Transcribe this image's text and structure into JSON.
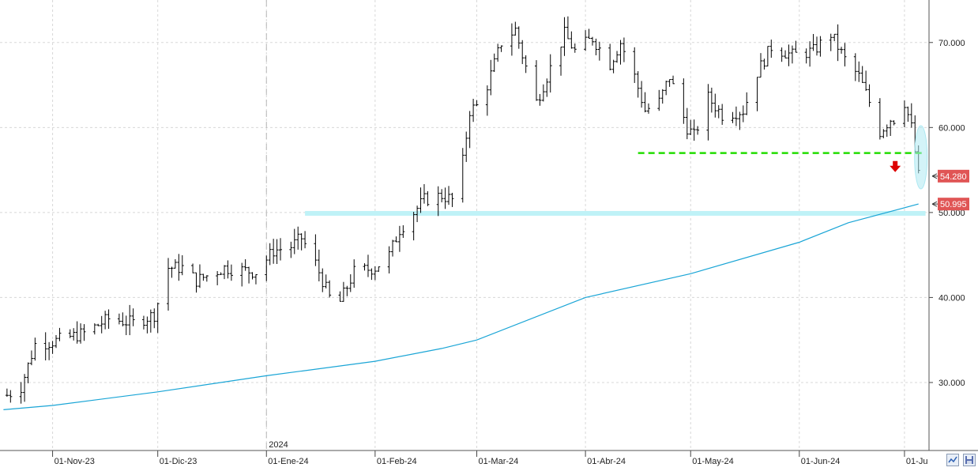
{
  "chart_data": {
    "type": "ohlc",
    "title": "",
    "xlabel": "",
    "ylabel": "",
    "ylim": [
      22,
      75
    ],
    "y_ticks": [
      {
        "value": 30,
        "label": "30.000"
      },
      {
        "value": 40,
        "label": "40.000"
      },
      {
        "value": 50,
        "label": "50.000"
      },
      {
        "value": 60,
        "label": "60.000"
      },
      {
        "value": 70,
        "label": "70.000"
      }
    ],
    "x_ticks": [
      {
        "date": "2023-11-01",
        "label": "01-Nov-23"
      },
      {
        "date": "2023-12-01",
        "label": "01-Dic-23"
      },
      {
        "date": "2024-01-01",
        "label": "01-Ene-24"
      },
      {
        "date": "2024-02-01",
        "label": "01-Feb-24"
      },
      {
        "date": "2024-03-01",
        "label": "01-Mar-24"
      },
      {
        "date": "2024-04-01",
        "label": "01-Abr-24"
      },
      {
        "date": "2024-05-01",
        "label": "01-May-24"
      },
      {
        "date": "2024-06-01",
        "label": "01-Jun-24"
      },
      {
        "date": "2024-07-01",
        "label": "01-Ju"
      }
    ],
    "year_marker": {
      "date": "2024-01-01",
      "label": "2024"
    },
    "last_price": {
      "value": 54.28,
      "label": "54.280",
      "color": "#e05555"
    },
    "ma_last": {
      "value": 50.995,
      "label": "50.995",
      "color": "#e05555"
    },
    "price_anchors": [
      [
        "2023-10-19",
        28.5
      ],
      [
        "2023-10-23",
        29.5
      ],
      [
        "2023-10-25",
        32.0
      ],
      [
        "2023-10-27",
        34.5
      ],
      [
        "2023-11-01",
        34.8
      ],
      [
        "2023-11-10",
        35.8
      ],
      [
        "2023-11-17",
        37.5
      ],
      [
        "2023-11-24",
        37.0
      ],
      [
        "2023-11-30",
        38.0
      ],
      [
        "2023-12-04",
        43.5
      ],
      [
        "2023-12-08",
        43.5
      ],
      [
        "2023-12-12",
        42.0
      ],
      [
        "2023-12-20",
        43.5
      ],
      [
        "2023-12-29",
        43.0
      ],
      [
        "2024-01-03",
        45.5
      ],
      [
        "2024-01-08",
        46.0
      ],
      [
        "2024-01-11",
        47.0
      ],
      [
        "2024-01-15",
        44.0
      ],
      [
        "2024-01-19",
        40.0
      ],
      [
        "2024-01-22",
        39.5
      ],
      [
        "2024-01-26",
        43.0
      ],
      [
        "2024-02-01",
        43.5
      ],
      [
        "2024-02-05",
        45.0
      ],
      [
        "2024-02-08",
        48.0
      ],
      [
        "2024-02-12",
        50.0
      ],
      [
        "2024-02-15",
        51.5
      ],
      [
        "2024-02-20",
        52.0
      ],
      [
        "2024-02-23",
        51.5
      ],
      [
        "2024-02-26",
        56.0
      ],
      [
        "2024-02-28",
        62.0
      ],
      [
        "2024-03-01",
        62.5
      ],
      [
        "2024-03-04",
        65.0
      ],
      [
        "2024-03-08",
        70.0
      ],
      [
        "2024-03-12",
        71.5
      ],
      [
        "2024-03-14",
        68.5
      ],
      [
        "2024-03-18",
        63.0
      ],
      [
        "2024-03-21",
        66.0
      ],
      [
        "2024-03-26",
        71.0
      ],
      [
        "2024-03-29",
        69.0
      ],
      [
        "2024-04-03",
        70.5
      ],
      [
        "2024-04-08",
        67.5
      ],
      [
        "2024-04-11",
        70.0
      ],
      [
        "2024-04-15",
        66.0
      ],
      [
        "2024-04-18",
        62.0
      ],
      [
        "2024-04-22",
        63.0
      ],
      [
        "2024-04-25",
        66.0
      ],
      [
        "2024-04-30",
        60.0
      ],
      [
        "2024-05-02",
        59.0
      ],
      [
        "2024-05-06",
        63.5
      ],
      [
        "2024-05-10",
        61.5
      ],
      [
        "2024-05-16",
        62.0
      ],
      [
        "2024-05-20",
        66.5
      ],
      [
        "2024-05-24",
        69.5
      ],
      [
        "2024-05-30",
        68.5
      ],
      [
        "2024-06-05",
        69.0
      ],
      [
        "2024-06-10",
        71.0
      ],
      [
        "2024-06-14",
        68.0
      ],
      [
        "2024-06-18",
        66.0
      ],
      [
        "2024-06-21",
        63.0
      ],
      [
        "2024-06-24",
        59.5
      ],
      [
        "2024-06-27",
        61.0
      ],
      [
        "2024-06-28",
        61.0
      ],
      [
        "2024-07-01",
        63.0
      ],
      [
        "2024-07-03",
        60.0
      ],
      [
        "2024-07-05",
        54.3
      ]
    ],
    "moving_average": [
      [
        "2023-10-18",
        26.8
      ],
      [
        "2023-11-01",
        27.3
      ],
      [
        "2023-12-01",
        28.9
      ],
      [
        "2024-01-01",
        30.8
      ],
      [
        "2024-02-01",
        32.5
      ],
      [
        "2024-02-20",
        34.0
      ],
      [
        "2024-03-01",
        35.0
      ],
      [
        "2024-04-01",
        40.0
      ],
      [
        "2024-05-01",
        42.8
      ],
      [
        "2024-06-01",
        46.5
      ],
      [
        "2024-06-15",
        48.8
      ],
      [
        "2024-07-05",
        51.0
      ]
    ],
    "annotations": {
      "support_line": {
        "value": 57.0,
        "from": "2024-04-16",
        "to": "2024-07-07",
        "color": "#22dd00"
      },
      "resistance_band": {
        "value": 49.9,
        "from": "2024-01-12",
        "to": "2024-07-07",
        "color": "#bff2f7"
      },
      "arrow": {
        "date": "2024-06-27",
        "value": 55.5,
        "direction": "down",
        "color": "#dd0000"
      },
      "ellipse": {
        "date": "2024-07-05",
        "value": 56.5,
        "color": "#aee9f2"
      }
    },
    "grid": true,
    "colors": {
      "bars": "#000000",
      "moving_average": "#1aa5d6",
      "grid": "#d8d8d8"
    }
  },
  "toolbar": {
    "icons": [
      "chart-toggle-icon",
      "save-icon"
    ]
  }
}
